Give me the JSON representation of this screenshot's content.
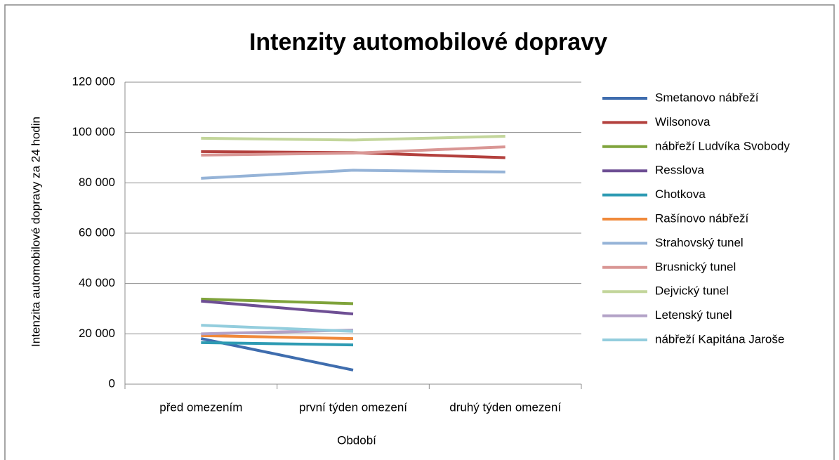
{
  "chart_data": {
    "type": "line",
    "title": "Intenzity automobilové dopravy",
    "y_label": "Intenzita automobilové dopravy za 24 hodin",
    "x_label": "Období",
    "categories": [
      "před omezením",
      "první týden omezení",
      "druhý týden omezení"
    ],
    "ylim": [
      0,
      120000
    ],
    "yticks": [
      0,
      {
        "value": 20000,
        "label": "20 000"
      },
      {
        "value": 40000,
        "label": "40 000"
      },
      {
        "value": 60000,
        "label": "60 000"
      },
      {
        "value": 80000,
        "label": "80 000"
      },
      {
        "value": 100000,
        "label": "100 000"
      },
      {
        "value": 120000,
        "label": "120 000"
      }
    ],
    "grid": true,
    "legend": "right",
    "series": [
      {
        "name": "Smetanovo nábřeží",
        "color": "#3f6dae",
        "values": [
          18100,
          5600,
          null
        ]
      },
      {
        "name": "Wilsonova",
        "color": "#b3403d",
        "values": [
          92400,
          92000,
          90000
        ]
      },
      {
        "name": "nábřeží Ludvíka Svobody",
        "color": "#7fa33b",
        "values": [
          33800,
          32000,
          null
        ]
      },
      {
        "name": "Resslova",
        "color": "#6e4f94",
        "values": [
          33000,
          27900,
          null
        ]
      },
      {
        "name": "Chotkova",
        "color": "#2e9bb3",
        "values": [
          16500,
          15600,
          null
        ]
      },
      {
        "name": "Rašínovo nábřeží",
        "color": "#f0893a",
        "values": [
          19300,
          18100,
          null
        ]
      },
      {
        "name": "Strahovský tunel",
        "color": "#95b3d7",
        "values": [
          81800,
          85000,
          84300
        ]
      },
      {
        "name": "Brusnický tunel",
        "color": "#d99694",
        "values": [
          91000,
          91800,
          94300
        ]
      },
      {
        "name": "Dejvický tunel",
        "color": "#c3d69b",
        "values": [
          97700,
          97000,
          98500
        ]
      },
      {
        "name": "Letenský tunel",
        "color": "#b3a2c7",
        "values": [
          20000,
          21500,
          null
        ]
      },
      {
        "name": "nábřeží Kapitána Jaroše",
        "color": "#93cddd",
        "values": [
          23400,
          21000,
          null
        ]
      }
    ]
  }
}
